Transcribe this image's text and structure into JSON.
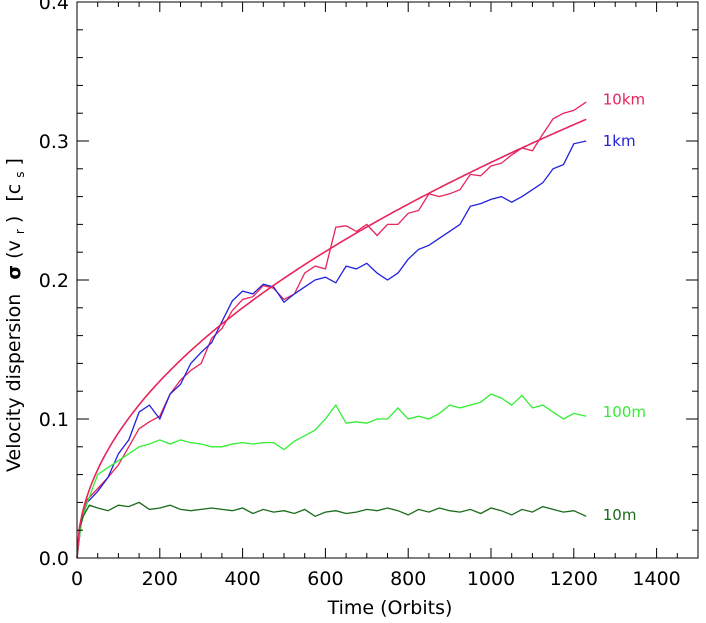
{
  "chart_data": {
    "type": "line",
    "title": "",
    "xlabel": "Time (Orbits)",
    "ylabel_main": "Velocity dispersion",
    "ylabel_symbol": "σ",
    "ylabel_arg": "(v",
    "ylabel_arg_sub": "r",
    "ylabel_arg_close": ")",
    "ylabel_unit_open": "[c",
    "ylabel_unit_sub": "s",
    "ylabel_unit_close": "]",
    "xlim": [
      0,
      1500
    ],
    "ylim": [
      0.0,
      0.4
    ],
    "xticks": [
      0,
      200,
      400,
      600,
      800,
      1000,
      1200,
      1400
    ],
    "yticks": [
      0.0,
      0.1,
      0.2,
      0.3,
      0.4
    ],
    "ytick_labels": [
      "0.0",
      "0.1",
      "0.2",
      "0.3",
      "0.4"
    ],
    "grid": false,
    "series": [
      {
        "name": "10km",
        "color": "#e8245a",
        "x": [
          0,
          10,
          25,
          50,
          75,
          100,
          125,
          150,
          175,
          200,
          225,
          250,
          275,
          300,
          325,
          350,
          375,
          400,
          425,
          450,
          475,
          500,
          525,
          550,
          575,
          600,
          625,
          650,
          675,
          700,
          725,
          750,
          775,
          800,
          825,
          850,
          875,
          900,
          925,
          950,
          975,
          1000,
          1025,
          1050,
          1075,
          1100,
          1125,
          1150,
          1175,
          1200,
          1230
        ],
        "y": [
          0.0,
          0.025,
          0.042,
          0.05,
          0.058,
          0.067,
          0.08,
          0.093,
          0.098,
          0.102,
          0.118,
          0.128,
          0.135,
          0.14,
          0.158,
          0.165,
          0.178,
          0.186,
          0.188,
          0.196,
          0.194,
          0.186,
          0.19,
          0.205,
          0.21,
          0.208,
          0.238,
          0.239,
          0.235,
          0.24,
          0.232,
          0.24,
          0.24,
          0.248,
          0.25,
          0.262,
          0.26,
          0.262,
          0.265,
          0.276,
          0.275,
          0.282,
          0.284,
          0.29,
          0.295,
          0.293,
          0.305,
          0.316,
          0.32,
          0.322,
          0.328
        ]
      },
      {
        "name": "1km",
        "color": "#2222dd",
        "x": [
          0,
          10,
          25,
          50,
          75,
          100,
          125,
          150,
          175,
          200,
          225,
          250,
          275,
          300,
          325,
          350,
          375,
          400,
          425,
          450,
          475,
          500,
          525,
          550,
          575,
          600,
          625,
          650,
          675,
          700,
          725,
          750,
          775,
          800,
          825,
          850,
          875,
          900,
          925,
          950,
          975,
          1000,
          1025,
          1050,
          1075,
          1100,
          1125,
          1150,
          1175,
          1200,
          1230
        ],
        "y": [
          0.0,
          0.025,
          0.04,
          0.048,
          0.058,
          0.075,
          0.085,
          0.105,
          0.11,
          0.1,
          0.118,
          0.125,
          0.14,
          0.148,
          0.155,
          0.17,
          0.185,
          0.192,
          0.19,
          0.197,
          0.195,
          0.184,
          0.19,
          0.195,
          0.2,
          0.202,
          0.198,
          0.21,
          0.208,
          0.212,
          0.205,
          0.2,
          0.205,
          0.215,
          0.222,
          0.225,
          0.23,
          0.235,
          0.24,
          0.253,
          0.255,
          0.258,
          0.26,
          0.256,
          0.26,
          0.265,
          0.27,
          0.28,
          0.283,
          0.298,
          0.3
        ]
      },
      {
        "name": "100m",
        "color": "#33ee33",
        "x": [
          0,
          10,
          25,
          50,
          75,
          100,
          125,
          150,
          175,
          200,
          225,
          250,
          275,
          300,
          325,
          350,
          375,
          400,
          425,
          450,
          475,
          500,
          525,
          550,
          575,
          600,
          625,
          650,
          675,
          700,
          725,
          750,
          775,
          800,
          825,
          850,
          875,
          900,
          925,
          950,
          975,
          1000,
          1025,
          1050,
          1075,
          1100,
          1125,
          1150,
          1175,
          1200,
          1230
        ],
        "y": [
          0.0,
          0.025,
          0.04,
          0.06,
          0.065,
          0.07,
          0.075,
          0.08,
          0.082,
          0.085,
          0.082,
          0.085,
          0.083,
          0.082,
          0.08,
          0.08,
          0.082,
          0.083,
          0.082,
          0.083,
          0.083,
          0.078,
          0.084,
          0.088,
          0.092,
          0.1,
          0.11,
          0.097,
          0.098,
          0.097,
          0.1,
          0.1,
          0.108,
          0.1,
          0.102,
          0.1,
          0.104,
          0.11,
          0.108,
          0.11,
          0.112,
          0.118,
          0.115,
          0.11,
          0.117,
          0.108,
          0.11,
          0.105,
          0.1,
          0.104,
          0.102
        ]
      },
      {
        "name": "10m",
        "color": "#1a6b1a",
        "x": [
          0,
          5,
          15,
          30,
          50,
          75,
          100,
          125,
          150,
          175,
          200,
          225,
          250,
          275,
          300,
          325,
          350,
          375,
          400,
          425,
          450,
          475,
          500,
          525,
          550,
          575,
          600,
          625,
          650,
          675,
          700,
          725,
          750,
          775,
          800,
          825,
          850,
          875,
          900,
          925,
          950,
          975,
          1000,
          1025,
          1050,
          1075,
          1100,
          1125,
          1150,
          1175,
          1200,
          1230
        ],
        "y": [
          0.0,
          0.02,
          0.03,
          0.038,
          0.036,
          0.034,
          0.038,
          0.037,
          0.04,
          0.035,
          0.036,
          0.038,
          0.035,
          0.034,
          0.035,
          0.036,
          0.035,
          0.034,
          0.036,
          0.032,
          0.035,
          0.033,
          0.034,
          0.032,
          0.035,
          0.03,
          0.033,
          0.034,
          0.032,
          0.033,
          0.035,
          0.034,
          0.036,
          0.034,
          0.031,
          0.035,
          0.033,
          0.036,
          0.034,
          0.033,
          0.035,
          0.032,
          0.036,
          0.034,
          0.031,
          0.035,
          0.033,
          0.037,
          0.035,
          0.033,
          0.034,
          0.03
        ]
      }
    ],
    "fit": {
      "color": "#e8245a",
      "form": "y = a * sqrt(x)",
      "a": 0.009,
      "x_range": [
        0,
        1230
      ]
    }
  }
}
